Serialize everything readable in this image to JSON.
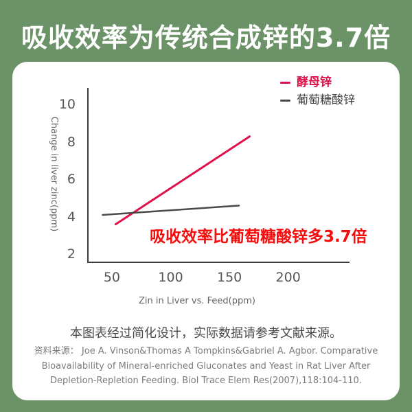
{
  "header": {
    "title": "吸收效率为传统合成锌的3.7倍"
  },
  "colors": {
    "background_green": "#6c9268",
    "card_white": "#ffffff",
    "yeast_line_red": "#e0104a",
    "gluconate_line_gray": "#4a4a4a",
    "annotation_red": "#f50d0d",
    "axis_gray": "#3c3c3c"
  },
  "chart_data": {
    "type": "line",
    "xlabel": "Zin in Liver vs. Feed(ppm)",
    "ylabel": "Change in liver zinc(ppm)",
    "x_ticks": [
      50,
      100,
      150,
      200
    ],
    "y_ticks": [
      2,
      4,
      6,
      8,
      10
    ],
    "xlim": [
      29,
      251
    ],
    "ylim": [
      1.6,
      10.9
    ],
    "grid": false,
    "legend_position": "top-right",
    "series": [
      {
        "name": "酵母锌",
        "color": "#e0104a",
        "stroke_width": 3,
        "points": [
          [
            52,
            3.6
          ],
          [
            166,
            8.3
          ]
        ]
      },
      {
        "name": "葡萄糖酸锌",
        "color": "#4a4a4a",
        "stroke_width": 2.5,
        "points": [
          [
            41,
            4.1
          ],
          [
            157,
            4.6
          ]
        ]
      }
    ],
    "annotation": "吸收效率比葡萄糖酸锌多3.7倍"
  },
  "footer": {
    "note": "本图表经过简化设计，实际数据请参考文献来源。",
    "citation_lines": [
      "资料来源： Joe A. Vinson&Thomas A Tompkins&Gabriel A. Agbor. Comparative",
      "Bioavailability of Mineral-enriched Gluconates and Yeast in Rat Liver After",
      "Depletion-Repletion Feeding. Biol Trace Elem Res(2007),118:104-110."
    ]
  }
}
